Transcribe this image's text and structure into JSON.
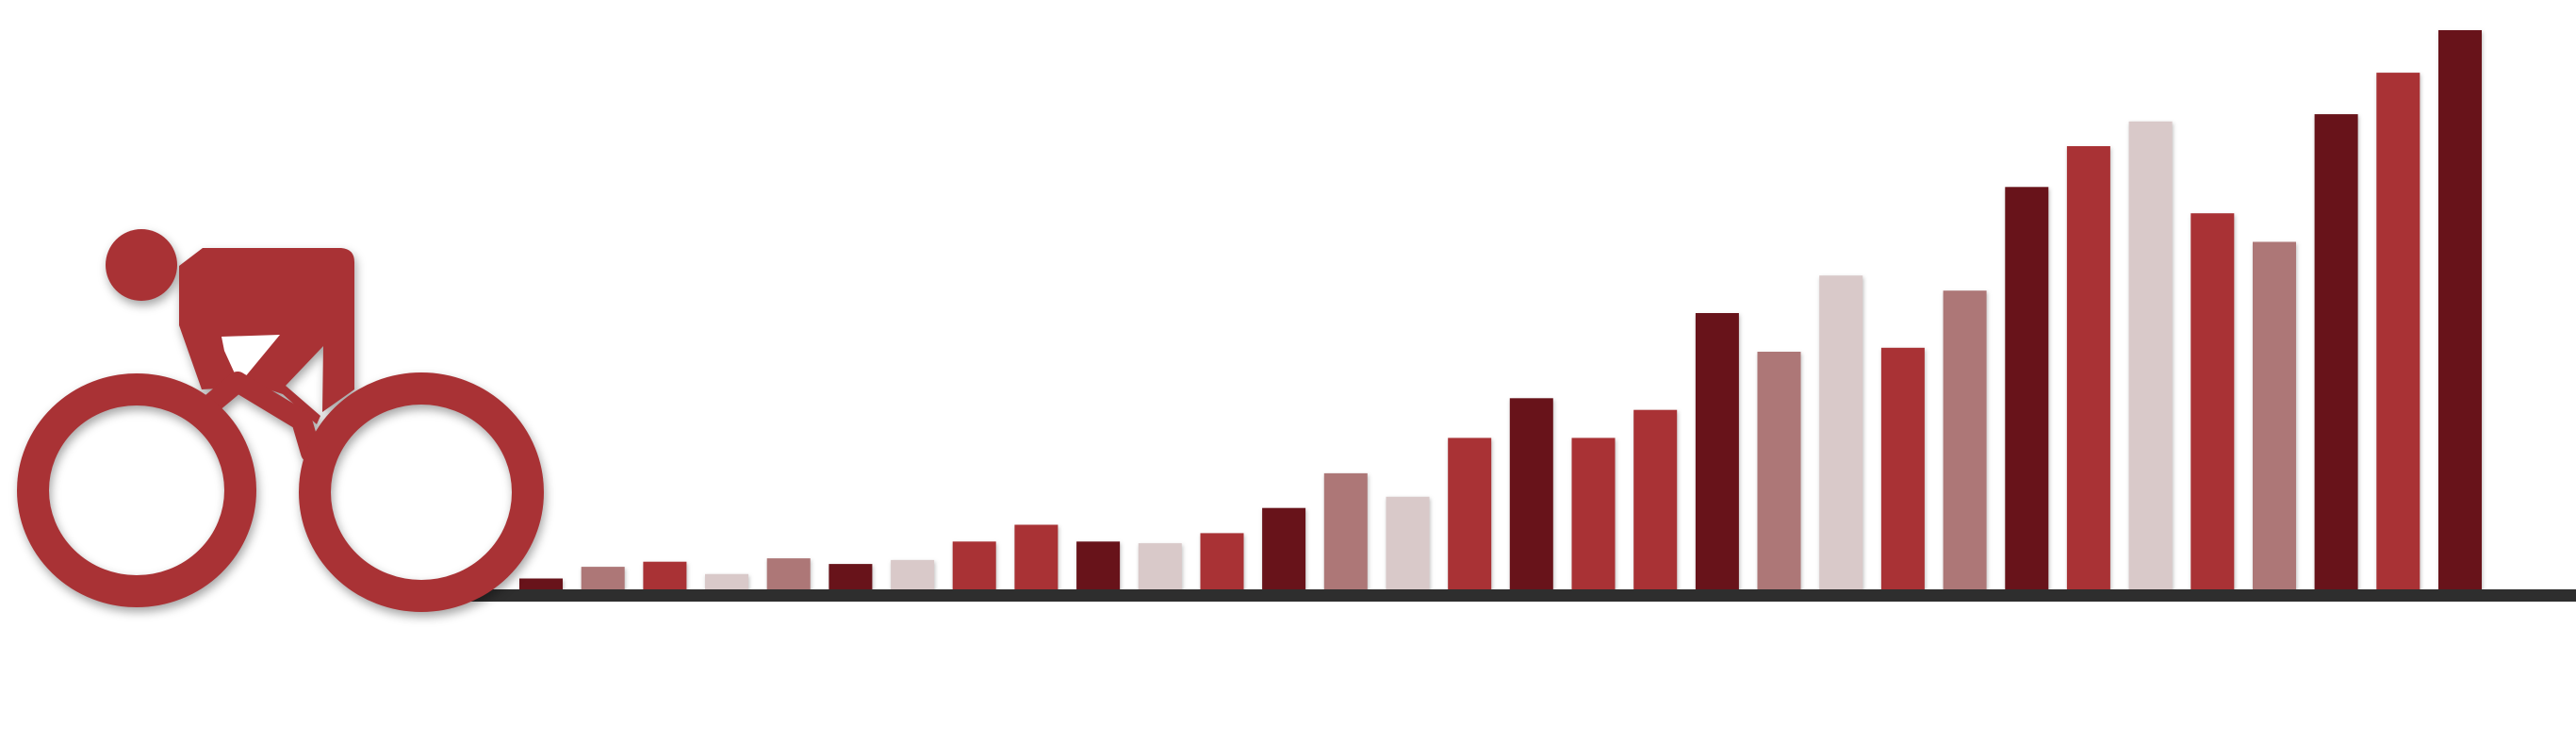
{
  "colors": {
    "dark_red": "#68131a",
    "red": "#a93235",
    "dusty_rose": "#ad7777",
    "pale_pink": "#d9c9c9",
    "baseline": "#2e2e2e",
    "cyclist": "#a93235"
  },
  "icon": "cyclist-icon",
  "chart_data": {
    "type": "bar",
    "title": "",
    "xlabel": "",
    "ylabel": "",
    "ylim": [
      0,
      100
    ],
    "grid": false,
    "legend": "none",
    "axis_labels_shown": false,
    "values": [
      2.1,
      4.2,
      5.1,
      2.9,
      5.7,
      4.7,
      5.4,
      8.7,
      11.7,
      8.7,
      8.4,
      10.2,
      14.7,
      20.9,
      16.7,
      27.2,
      34.3,
      27.2,
      32.2,
      49.5,
      42.6,
      56.2,
      43.3,
      53.5,
      72.0,
      79.3,
      83.7,
      67.3,
      62.2,
      85.0,
      92.4,
      100.0
    ],
    "colors": [
      "dark_red",
      "dusty_rose",
      "red",
      "pale_pink",
      "dusty_rose",
      "dark_red",
      "pale_pink",
      "red",
      "red",
      "dark_red",
      "pale_pink",
      "red",
      "dark_red",
      "dusty_rose",
      "pale_pink",
      "red",
      "dark_red",
      "red",
      "red",
      "dark_red",
      "dusty_rose",
      "pale_pink",
      "red",
      "dusty_rose",
      "dark_red",
      "red",
      "pale_pink",
      "red",
      "dusty_rose",
      "dark_red",
      "red",
      "dark_red"
    ]
  }
}
